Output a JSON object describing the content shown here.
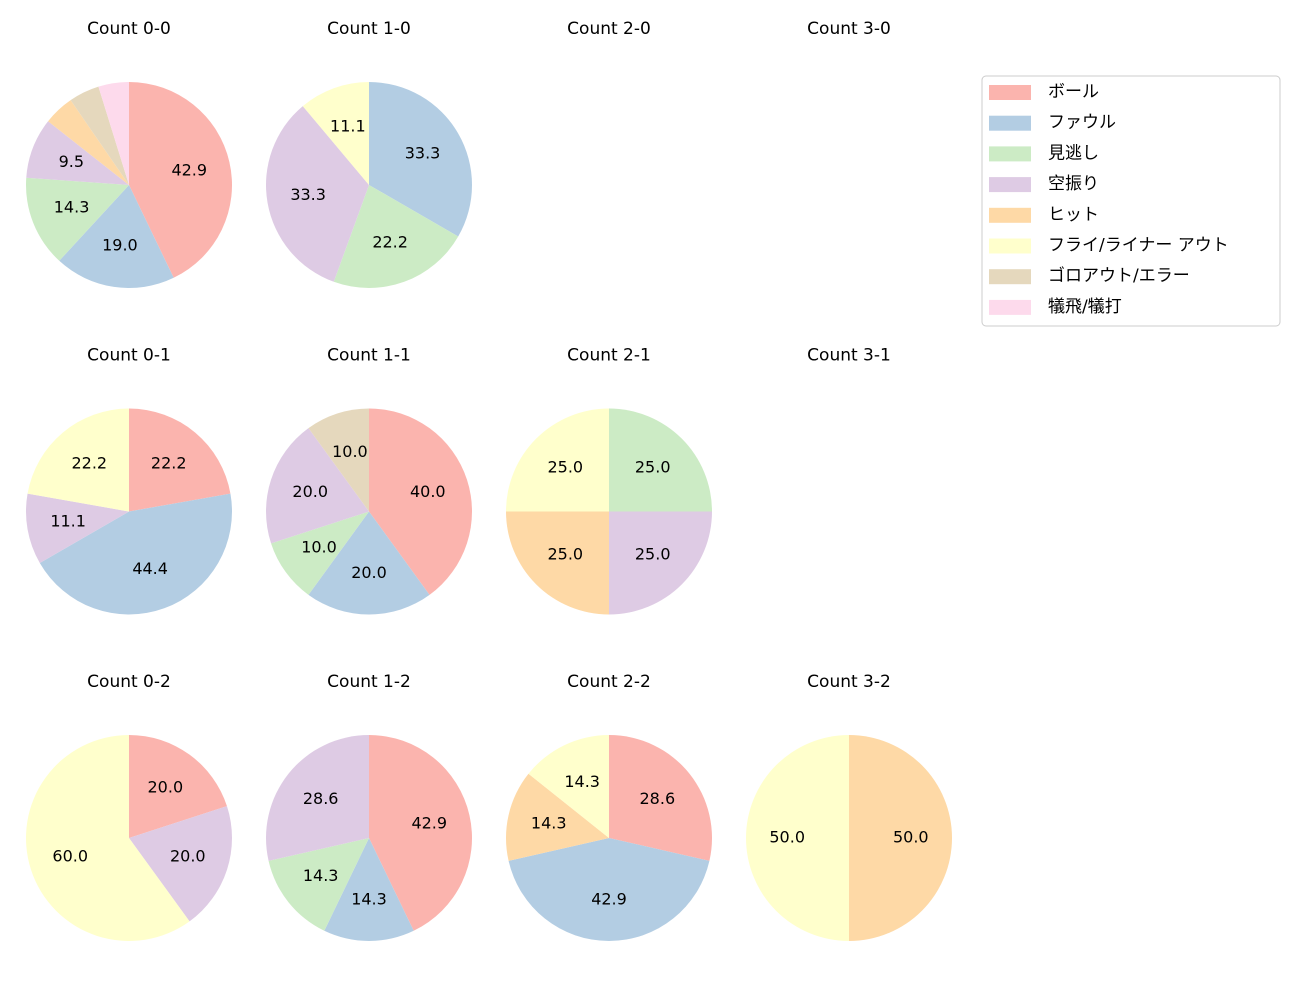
{
  "legend": {
    "labels": [
      "ボール",
      "ファウル",
      "見逃し",
      "空振り",
      "ヒット",
      "フライ/ライナー アウト",
      "ゴロアウト/エラー",
      "犠飛/犠打"
    ],
    "colors": [
      "#fbb4ae",
      "#b3cde3",
      "#ccebc5",
      "#decbe4",
      "#fed9a6",
      "#ffffcc",
      "#e5d8bd",
      "#fddaec"
    ]
  },
  "chart_data": [
    {
      "type": "pie",
      "title": "Count 0-0",
      "values": [
        42.9,
        19.0,
        14.3,
        9.5,
        4.8,
        null,
        4.8,
        4.8
      ],
      "value_labels": [
        "42.9",
        "19.0",
        "14.3",
        "9.5",
        null,
        null,
        null,
        null
      ]
    },
    {
      "type": "pie",
      "title": "Count 1-0",
      "values": [
        null,
        33.3,
        22.2,
        33.3,
        null,
        11.1,
        null,
        null
      ],
      "value_labels": [
        null,
        "33.3",
        "22.2",
        "33.3",
        null,
        "11.1",
        null,
        null
      ]
    },
    {
      "type": "pie",
      "title": "Count 2-0",
      "values": [
        null,
        null,
        null,
        null,
        null,
        null,
        null,
        null
      ],
      "value_labels": [
        null,
        null,
        null,
        null,
        null,
        null,
        null,
        null
      ]
    },
    {
      "type": "pie",
      "title": "Count 3-0",
      "values": [
        null,
        null,
        null,
        null,
        null,
        null,
        null,
        null
      ],
      "value_labels": [
        null,
        null,
        null,
        null,
        null,
        null,
        null,
        null
      ]
    },
    {
      "type": "pie",
      "title": "Count 0-1",
      "values": [
        22.2,
        44.4,
        null,
        11.1,
        null,
        22.2,
        null,
        null
      ],
      "value_labels": [
        "22.2",
        "44.4",
        null,
        "11.1",
        null,
        "22.2",
        null,
        null
      ]
    },
    {
      "type": "pie",
      "title": "Count 1-1",
      "values": [
        40.0,
        20.0,
        10.0,
        20.0,
        null,
        null,
        10.0,
        null
      ],
      "value_labels": [
        "40.0",
        "20.0",
        "10.0",
        "20.0",
        null,
        null,
        "10.0",
        null
      ]
    },
    {
      "type": "pie",
      "title": "Count 2-1",
      "values": [
        null,
        null,
        25.0,
        25.0,
        25.0,
        25.0,
        null,
        null
      ],
      "value_labels": [
        null,
        null,
        "25.0",
        "25.0",
        "25.0",
        "25.0",
        null,
        null
      ]
    },
    {
      "type": "pie",
      "title": "Count 3-1",
      "values": [
        null,
        null,
        null,
        null,
        null,
        null,
        null,
        null
      ],
      "value_labels": [
        null,
        null,
        null,
        null,
        null,
        null,
        null,
        null
      ]
    },
    {
      "type": "pie",
      "title": "Count 0-2",
      "values": [
        20.0,
        null,
        null,
        20.0,
        null,
        60.0,
        null,
        null
      ],
      "value_labels": [
        "20.0",
        null,
        null,
        "20.0",
        null,
        "60.0",
        null,
        null
      ]
    },
    {
      "type": "pie",
      "title": "Count 1-2",
      "values": [
        42.9,
        14.3,
        14.3,
        28.6,
        null,
        null,
        null,
        null
      ],
      "value_labels": [
        "42.9",
        "14.3",
        "14.3",
        "28.6",
        null,
        null,
        null,
        null
      ]
    },
    {
      "type": "pie",
      "title": "Count 2-2",
      "values": [
        28.6,
        42.9,
        null,
        null,
        14.3,
        14.3,
        null,
        null
      ],
      "value_labels": [
        "28.6",
        "42.9",
        null,
        null,
        "14.3",
        "14.3",
        null,
        null
      ]
    },
    {
      "type": "pie",
      "title": "Count 3-2",
      "values": [
        null,
        null,
        null,
        null,
        50.0,
        50.0,
        null,
        null
      ],
      "value_labels": [
        null,
        null,
        null,
        null,
        "50.0",
        "50.0",
        null,
        null
      ]
    }
  ]
}
